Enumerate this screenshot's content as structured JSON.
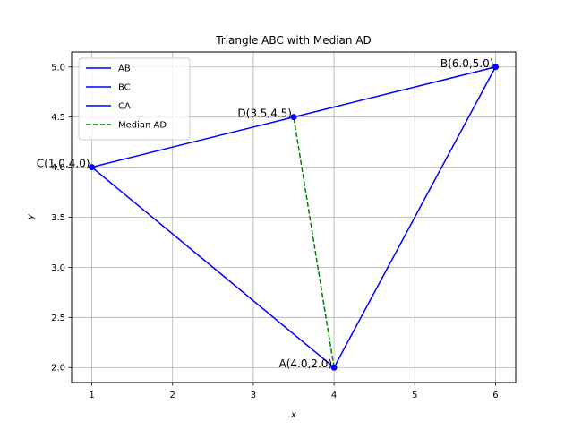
{
  "chart_data": {
    "type": "line",
    "title": "Triangle ABC with Median AD",
    "xlabel": "x",
    "ylabel": "y",
    "xlim": [
      0.75,
      6.25
    ],
    "ylim": [
      1.85,
      5.15
    ],
    "xticks": [
      1,
      2,
      3,
      4,
      5,
      6
    ],
    "yticks": [
      2.0,
      2.5,
      3.0,
      3.5,
      4.0,
      4.5,
      5.0
    ],
    "xtick_labels": [
      "1",
      "2",
      "3",
      "4",
      "5",
      "6"
    ],
    "ytick_labels": [
      "2.0",
      "2.5",
      "3.0",
      "3.5",
      "4.0",
      "4.5",
      "5.0"
    ],
    "grid": true,
    "legend_position": "top-left",
    "points": [
      {
        "name": "A",
        "label": "A(4.0,2.0)",
        "x": 4.0,
        "y": 2.0
      },
      {
        "name": "B",
        "label": "B(6.0,5.0)",
        "x": 6.0,
        "y": 5.0
      },
      {
        "name": "C",
        "label": "C(1.0,4.0)",
        "x": 1.0,
        "y": 4.0
      },
      {
        "name": "D",
        "label": "D(3.5,4.5)",
        "x": 3.5,
        "y": 4.5
      }
    ],
    "series": [
      {
        "name": "AB",
        "color": "#0000ff",
        "style": "solid",
        "x": [
          4.0,
          6.0
        ],
        "y": [
          2.0,
          5.0
        ]
      },
      {
        "name": "BC",
        "color": "#0000ff",
        "style": "solid",
        "x": [
          6.0,
          1.0
        ],
        "y": [
          5.0,
          4.0
        ]
      },
      {
        "name": "CA",
        "color": "#0000ff",
        "style": "solid",
        "x": [
          1.0,
          4.0
        ],
        "y": [
          4.0,
          2.0
        ]
      },
      {
        "name": "Median AD",
        "color": "#008000",
        "style": "dashed",
        "x": [
          4.0,
          3.5
        ],
        "y": [
          2.0,
          4.5
        ]
      }
    ]
  }
}
